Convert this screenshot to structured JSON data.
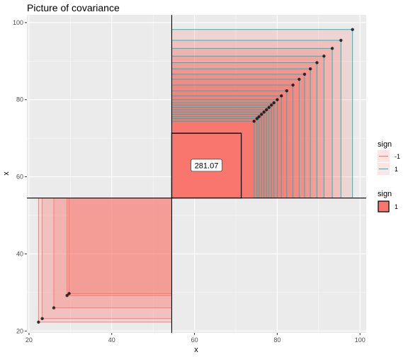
{
  "chart_data": {
    "type": "scatter",
    "title": "Picture of covariance",
    "xlabel": "x",
    "ylabel": "x",
    "xlim": [
      19.5,
      101.5
    ],
    "ylim": [
      19.5,
      102
    ],
    "x_ticks": [
      20,
      40,
      60,
      80,
      100
    ],
    "y_ticks": [
      20,
      40,
      60,
      80,
      100
    ],
    "grid": true,
    "mean": 54.5,
    "mean_box_value": 281.07,
    "mean_box_label": "281.07",
    "mean_box_upper": 71.3,
    "points": [
      22.3,
      23.2,
      26.0,
      29.2,
      29.7,
      74.4,
      75.1,
      75.6,
      76.2,
      76.8,
      77.4,
      78.0,
      78.6,
      79.2,
      80.0,
      81.0,
      82.3,
      83.8,
      85.3,
      86.6,
      88.0,
      89.6,
      91.3,
      93.3,
      95.4,
      98.2
    ],
    "legend": {
      "position": "right",
      "line_legend": {
        "title": "sign",
        "entries": [
          {
            "label": "-1",
            "color": "#F8766D"
          },
          {
            "label": "1",
            "color": "#00BFC4"
          }
        ]
      },
      "fill_legend": {
        "title": "sign",
        "entries": [
          {
            "label": "1",
            "color": "#F8766D"
          }
        ]
      }
    },
    "colors": {
      "panel": "#EBEBEB",
      "grid_major": "#FFFFFF",
      "fill": "#F8766D",
      "outline_neg": "#F8766D",
      "outline_pos": "#00BFC4",
      "point": "#000000"
    }
  }
}
